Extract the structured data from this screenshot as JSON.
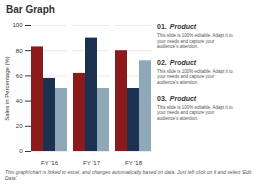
{
  "chart_data": {
    "type": "bar",
    "title": "Bar Graph",
    "categories": [
      "FY '16",
      "FY '17",
      "FY '18"
    ],
    "series": [
      {
        "color": "#8B1A1A",
        "values": [
          83,
          62,
          80
        ]
      },
      {
        "color": "#1C3050",
        "values": [
          58,
          90,
          50
        ]
      },
      {
        "color": "#8FA8B8",
        "values": [
          50,
          50,
          72
        ]
      }
    ],
    "ylabel": "Sales in Percentage (%)",
    "ylim": [
      0,
      100
    ],
    "yticks": [
      0,
      20,
      40,
      60,
      80,
      100
    ],
    "grid": true,
    "annotations": [
      {
        "num": "01.",
        "text": "Product",
        "desc": "This slide is 100% editable. Adapt it to\nyour needs and capture your\naudience's attention."
      },
      {
        "num": "02.",
        "text": "Product",
        "desc": "This slide is 100% editable. Adapt it to\nyour needs and capture your\naudience's attention."
      },
      {
        "num": "03.",
        "text": "Product",
        "desc": "This slide is 100% editable. Adapt it to\nyour needs and capture your\naudience's attention."
      }
    ],
    "caption": "This graph/chart is linked to excel, and changes automatically based on data. Just left click on it and select 'Edit Data'."
  }
}
